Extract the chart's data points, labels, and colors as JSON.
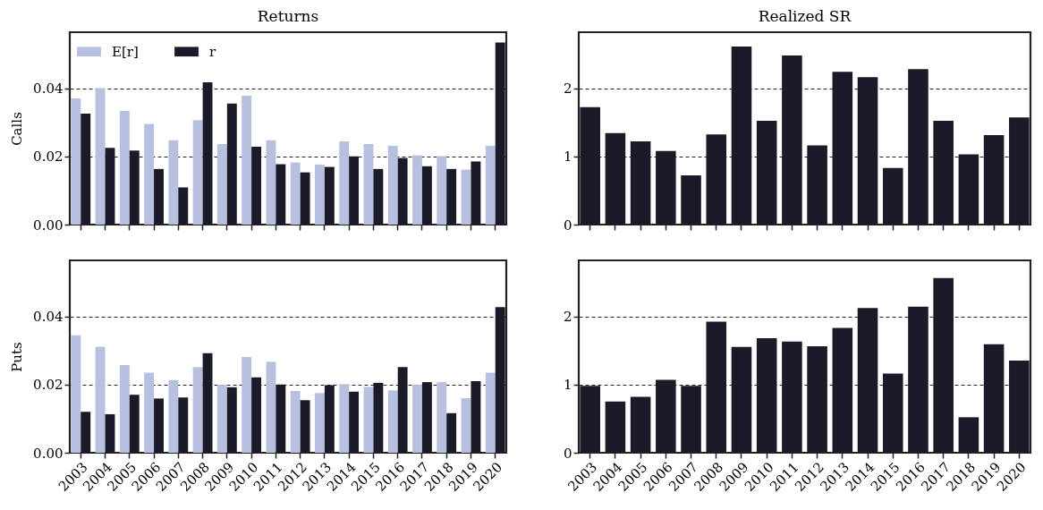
{
  "chart_data": [
    {
      "type": "bar",
      "title": "Returns",
      "ylabel": "Calls",
      "categories": [
        "2003",
        "2004",
        "2005",
        "2006",
        "2007",
        "2008",
        "2009",
        "2010",
        "2011",
        "2012",
        "2013",
        "2014",
        "2015",
        "2016",
        "2017",
        "2018",
        "2019",
        "2020"
      ],
      "series": [
        {
          "name": "E[r]",
          "color": "#b8c0e0",
          "values": [
            0.037,
            0.04,
            0.0333,
            0.0295,
            0.0247,
            0.0306,
            0.0236,
            0.0378,
            0.0247,
            0.0182,
            0.0176,
            0.0244,
            0.0236,
            0.0231,
            0.0203,
            0.0201,
            0.0161,
            0.0231
          ]
        },
        {
          "name": "r",
          "color": "#1b1a28",
          "values": [
            0.0325,
            0.0225,
            0.0217,
            0.0163,
            0.0109,
            0.0417,
            0.0355,
            0.0228,
            0.0177,
            0.0153,
            0.0169,
            0.02,
            0.0163,
            0.0195,
            0.0171,
            0.0163,
            0.0185,
            0.0534
          ]
        }
      ],
      "ylim": [
        0,
        0.0564
      ],
      "yticks": [
        {
          "value": 0,
          "label": "0.00"
        },
        0.02,
        0.04
      ],
      "grid": "y",
      "legend": "top left",
      "tick_labels": "y"
    },
    {
      "type": "bar",
      "title": "Realized SR",
      "categories": [
        "2003",
        "2004",
        "2005",
        "2006",
        "2007",
        "2008",
        "2009",
        "2010",
        "2011",
        "2012",
        "2013",
        "2014",
        "2015",
        "2016",
        "2017",
        "2018",
        "2019",
        "2020"
      ],
      "series": [
        {
          "color": "#1b1a28",
          "values": [
            1.72,
            1.34,
            1.22,
            1.08,
            0.72,
            1.32,
            2.61,
            1.52,
            2.48,
            1.16,
            2.24,
            2.16,
            0.83,
            2.28,
            1.52,
            1.03,
            1.31,
            1.57
          ]
        }
      ],
      "ylim": [
        0,
        2.82
      ],
      "yticks": [
        0,
        1,
        2
      ],
      "grid": "y",
      "tick_labels": "y"
    },
    {
      "type": "bar",
      "ylabel": "Puts",
      "categories": [
        "2003",
        "2004",
        "2005",
        "2006",
        "2007",
        "2008",
        "2009",
        "2010",
        "2011",
        "2012",
        "2013",
        "2014",
        "2015",
        "2016",
        "2017",
        "2018",
        "2019",
        "2020"
      ],
      "series": [
        {
          "color": "#b8c0e0",
          "values": [
            0.0344,
            0.0311,
            0.0257,
            0.0235,
            0.0213,
            0.0251,
            0.0199,
            0.0281,
            0.0267,
            0.0181,
            0.0175,
            0.0201,
            0.0193,
            0.0183,
            0.0199,
            0.0207,
            0.016,
            0.0235
          ]
        },
        {
          "color": "#1b1a28",
          "values": [
            0.012,
            0.0113,
            0.017,
            0.0159,
            0.0162,
            0.0292,
            0.0192,
            0.0221,
            0.02,
            0.0154,
            0.0198,
            0.0179,
            0.0205,
            0.0251,
            0.0207,
            0.0116,
            0.021,
            0.0427
          ]
        }
      ],
      "ylim": [
        0,
        0.0564
      ],
      "yticks": [
        {
          "value": 0,
          "label": "0.00"
        },
        0.02,
        0.04
      ],
      "grid": "y"
    },
    {
      "type": "bar",
      "categories": [
        "2003",
        "2004",
        "2005",
        "2006",
        "2007",
        "2008",
        "2009",
        "2010",
        "2011",
        "2012",
        "2013",
        "2014",
        "2015",
        "2016",
        "2017",
        "2018",
        "2019",
        "2020"
      ],
      "series": [
        {
          "color": "#1b1a28",
          "values": [
            0.98,
            0.75,
            0.82,
            1.07,
            0.98,
            1.92,
            1.55,
            1.68,
            1.63,
            1.56,
            1.83,
            2.12,
            1.16,
            2.14,
            2.56,
            0.52,
            1.59,
            1.35
          ]
        }
      ],
      "ylim": [
        0,
        2.82
      ],
      "yticks": [
        0,
        1,
        2
      ],
      "grid": "y"
    }
  ]
}
